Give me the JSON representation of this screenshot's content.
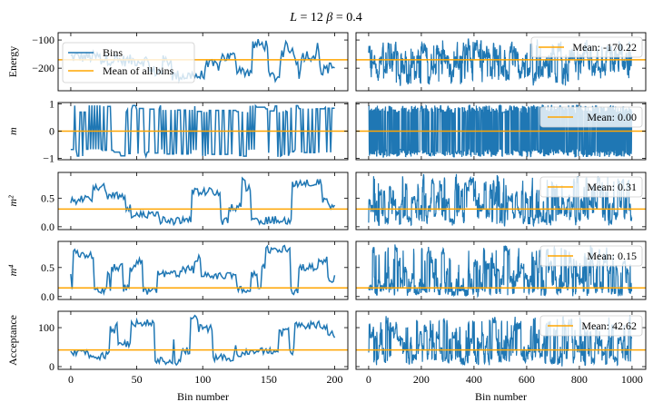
{
  "chart_data": {
    "type": "line",
    "title": "L = 12   β = 0.4",
    "title_parts": {
      "L_label": "L",
      "L_value": "12",
      "beta_label": "β",
      "beta_value": "0.4"
    },
    "colors": {
      "series": "#1f77b4",
      "mean": "#ffa500"
    },
    "columns": [
      {
        "name": "binned",
        "xlabel": "Bin number",
        "xlim": [
          -9.6,
          210
        ],
        "xticks": [
          0,
          50,
          100,
          150,
          200
        ],
        "n_points": 201
      },
      {
        "name": "raw",
        "xlabel": "Bin number",
        "xlim": [
          -48,
          1052
        ],
        "xticks": [
          0,
          200,
          400,
          600,
          800,
          1000
        ],
        "n_points": 1000
      }
    ],
    "rows": [
      {
        "ylabel": "Energy",
        "ylabel_math": false,
        "ylim": [
          -280,
          -74
        ],
        "yticks": [
          -100,
          -200
        ],
        "ytick_labels": [
          "−100",
          "−200"
        ],
        "mean": -170.22,
        "mean_label": "Mean: -170.22",
        "range": [
          -265,
          -95
        ]
      },
      {
        "ylabel": "m",
        "ylabel_math": true,
        "ylim": [
          -1.05,
          1.05
        ],
        "yticks": [
          1,
          0,
          -1
        ],
        "ytick_labels": [
          "1",
          "0",
          "−1"
        ],
        "mean": 0.0,
        "mean_label": "Mean: 0.00",
        "range": [
          -0.95,
          0.95
        ]
      },
      {
        "ylabel": "m²",
        "ylabel_math": true,
        "ylim": [
          -0.05,
          0.95
        ],
        "yticks": [
          0.5,
          0.0
        ],
        "ytick_labels": [
          "0.5",
          "0.0"
        ],
        "mean": 0.31,
        "mean_label": "Mean: 0.31",
        "range": [
          0.0,
          0.93
        ]
      },
      {
        "ylabel": "m⁴",
        "ylabel_math": true,
        "ylim": [
          -0.05,
          0.95
        ],
        "yticks": [
          0.5,
          0.0
        ],
        "ytick_labels": [
          "0.5",
          "0.0"
        ],
        "mean": 0.15,
        "mean_label": "Mean: 0.15",
        "range": [
          0.0,
          0.9
        ]
      },
      {
        "ylabel": "Acceptance",
        "ylabel_math": false,
        "ylim": [
          -7,
          142
        ],
        "yticks": [
          100,
          0
        ],
        "ytick_labels": [
          "100",
          "0"
        ],
        "mean": 42.62,
        "mean_label": "Mean: 42.62",
        "range": [
          0,
          133
        ]
      }
    ],
    "legend_left": {
      "entries": [
        "Bins",
        "Mean of all bins"
      ],
      "location": "upper-left",
      "row": 0
    },
    "legend_right_location": "upper-right",
    "series_names": [
      "Bins",
      "Mean of all bins"
    ],
    "grid": false
  }
}
